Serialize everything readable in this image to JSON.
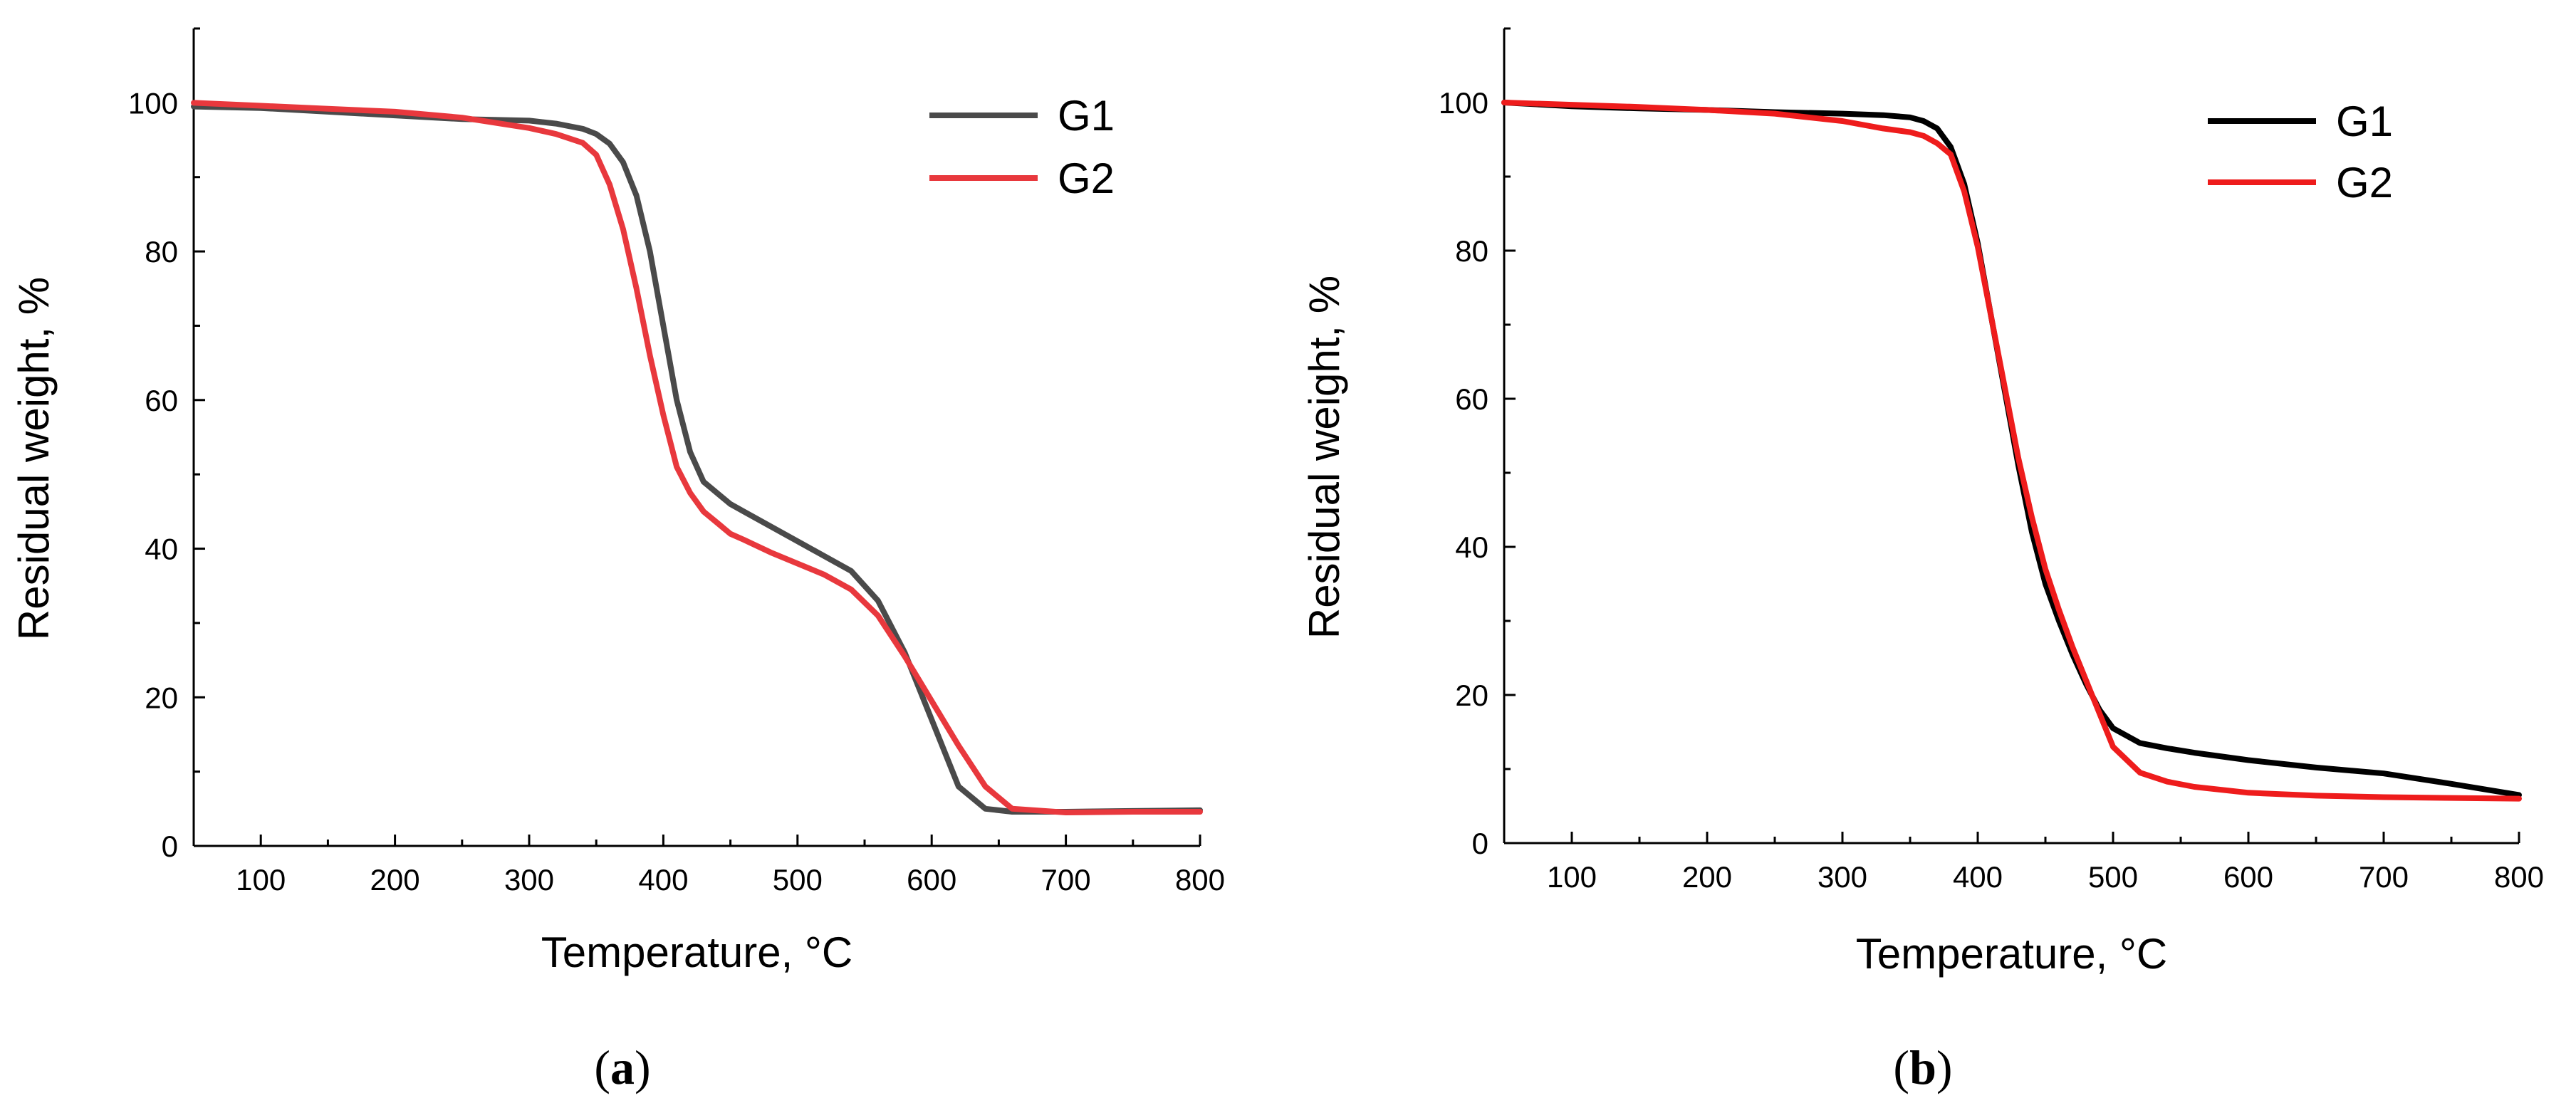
{
  "chart_data": [
    {
      "type": "line",
      "panel_label": "a",
      "xlabel": "Temperature, °C",
      "ylabel": "Residual weight, %",
      "xlim": [
        50,
        800
      ],
      "ylim": [
        0,
        110
      ],
      "xticks": [
        100,
        200,
        300,
        400,
        500,
        600,
        700,
        800
      ],
      "yticks": [
        0,
        20,
        40,
        60,
        80,
        100
      ],
      "grid": false,
      "legend_position": "top-right",
      "series": [
        {
          "name": "G1",
          "color": "#4a4a4a",
          "x": [
            50,
            100,
            150,
            200,
            250,
            300,
            320,
            340,
            350,
            360,
            370,
            380,
            390,
            400,
            410,
            420,
            430,
            440,
            450,
            460,
            480,
            500,
            520,
            540,
            560,
            580,
            600,
            620,
            640,
            660,
            700,
            750,
            800
          ],
          "y": [
            99.5,
            99.3,
            98.8,
            98.3,
            97.8,
            97.6,
            97.2,
            96.5,
            95.8,
            94.5,
            92,
            87.5,
            80,
            70,
            60,
            53,
            49,
            47.5,
            46,
            45,
            43,
            41,
            39,
            37,
            33,
            26,
            17,
            8,
            5,
            4.6,
            4.6,
            4.7,
            4.8
          ]
        },
        {
          "name": "G2",
          "color": "#e8383d",
          "x": [
            50,
            100,
            150,
            200,
            250,
            300,
            320,
            340,
            350,
            360,
            370,
            380,
            390,
            400,
            410,
            420,
            430,
            440,
            450,
            460,
            480,
            500,
            520,
            540,
            560,
            580,
            600,
            620,
            640,
            660,
            700,
            750,
            800
          ],
          "y": [
            100,
            99.6,
            99.2,
            98.8,
            98,
            96.6,
            95.8,
            94.6,
            93,
            89,
            83,
            75,
            66,
            58,
            51,
            47.5,
            45,
            43.5,
            42,
            41.2,
            39.5,
            38,
            36.5,
            34.5,
            31,
            25.5,
            19.5,
            13.5,
            8,
            5,
            4.5,
            4.6,
            4.6
          ]
        }
      ]
    },
    {
      "type": "line",
      "panel_label": "b",
      "xlabel": "Temperature, °C",
      "ylabel": "Residual weight, %",
      "xlim": [
        50,
        800
      ],
      "ylim": [
        0,
        110
      ],
      "xticks": [
        100,
        200,
        300,
        400,
        500,
        600,
        700,
        800
      ],
      "yticks": [
        0,
        20,
        40,
        60,
        80,
        100
      ],
      "grid": false,
      "legend_position": "top-right",
      "series": [
        {
          "name": "G1",
          "color": "#000000",
          "x": [
            50,
            100,
            150,
            200,
            250,
            300,
            330,
            350,
            360,
            370,
            380,
            390,
            400,
            410,
            420,
            430,
            440,
            450,
            460,
            470,
            480,
            490,
            500,
            520,
            540,
            560,
            600,
            650,
            700,
            750,
            800
          ],
          "y": [
            100,
            99.5,
            99.2,
            99,
            98.7,
            98.5,
            98.3,
            98,
            97.5,
            96.5,
            94,
            89,
            81,
            71,
            61,
            51,
            42,
            35,
            30,
            25.5,
            21.5,
            18,
            15.5,
            13.5,
            12.8,
            12.2,
            11.2,
            10.2,
            9.4,
            8,
            6.5
          ]
        },
        {
          "name": "G2",
          "color": "#ee1c1c",
          "x": [
            50,
            100,
            150,
            200,
            250,
            300,
            330,
            350,
            360,
            370,
            380,
            390,
            400,
            410,
            420,
            430,
            440,
            450,
            460,
            470,
            480,
            490,
            500,
            520,
            540,
            560,
            600,
            650,
            700,
            750,
            800
          ],
          "y": [
            100,
            99.7,
            99.4,
            99,
            98.5,
            97.5,
            96.5,
            96,
            95.5,
            94.5,
            93,
            88,
            80.5,
            71,
            61.5,
            52,
            44,
            37,
            31.5,
            26.5,
            22,
            17.5,
            13,
            9.5,
            8.3,
            7.6,
            6.8,
            6.4,
            6.2,
            6.1,
            6
          ]
        }
      ]
    }
  ]
}
